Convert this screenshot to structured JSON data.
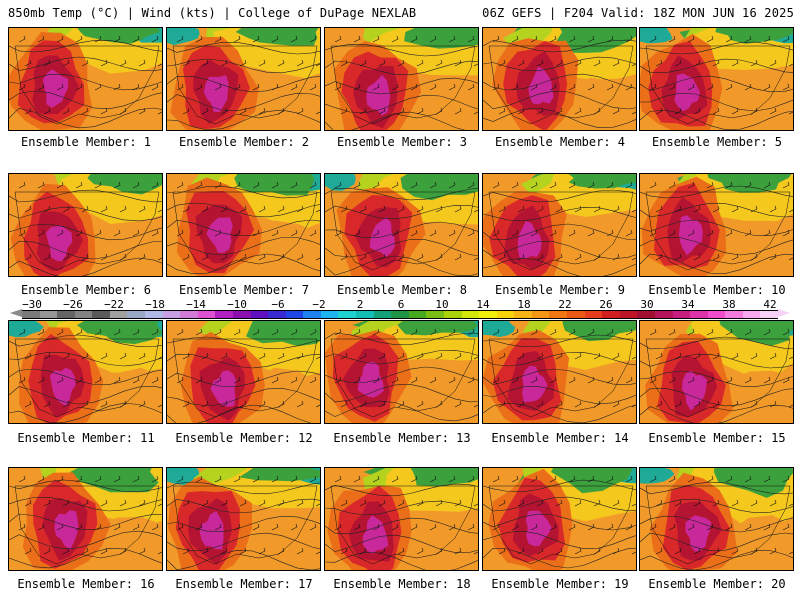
{
  "header": {
    "left": "850mb Temp (°C) | Wind (kts) | College of DuPage NEXLAB",
    "right": "06Z GEFS | F204 Valid: 18Z MON JUN 16 2025"
  },
  "members": [
    "Ensemble Member: 1",
    "Ensemble Member: 2",
    "Ensemble Member: 3",
    "Ensemble Member: 4",
    "Ensemble Member: 5",
    "Ensemble Member: 6",
    "Ensemble Member: 7",
    "Ensemble Member: 8",
    "Ensemble Member: 9",
    "Ensemble Member: 10",
    "Ensemble Member: 11",
    "Ensemble Member: 12",
    "Ensemble Member: 13",
    "Ensemble Member: 14",
    "Ensemble Member: 15",
    "Ensemble Member: 16",
    "Ensemble Member: 17",
    "Ensemble Member: 18",
    "Ensemble Member: 19",
    "Ensemble Member: 20"
  ],
  "colorbar": {
    "labels": [
      "−30",
      "−26",
      "−22",
      "−18",
      "−14",
      "−10",
      "−6",
      "−2",
      "2",
      "6",
      "10",
      "14",
      "18",
      "22",
      "26",
      "30",
      "34",
      "38",
      "42"
    ],
    "colors": [
      "#7a7a7a",
      "#969696",
      "#646464",
      "#828282",
      "#5a5a5a",
      "#a0a0a0",
      "#9aa8c8",
      "#b0b8e6",
      "#c8a0e6",
      "#d27ad8",
      "#e050d2",
      "#b020c0",
      "#8a10b0",
      "#6010c0",
      "#3a2ad2",
      "#1e46e6",
      "#1e82f0",
      "#1eb4f0",
      "#1ed2d2",
      "#14beb4",
      "#14a078",
      "#1e9646",
      "#46aa1e",
      "#78be14",
      "#aad20a",
      "#d2e60a",
      "#f0f00a",
      "#f8d20a",
      "#f8b414",
      "#f59614",
      "#f07814",
      "#eb5a14",
      "#e63c1e",
      "#d21e1e",
      "#be1428",
      "#a00f32",
      "#b4145a",
      "#c81e82",
      "#dc32aa",
      "#f04ccd",
      "#f47ae0",
      "#f7a8ef",
      "#f7d2f7"
    ]
  },
  "palette": {
    "orange": "#f19a2a",
    "dark_orange": "#eb6e18",
    "red": "#d9282a",
    "dark_red": "#b41432",
    "magenta": "#c8289a",
    "yellow": "#f5c81e",
    "lime": "#b4d21e",
    "green": "#3ca03c",
    "teal": "#1eaa96"
  }
}
